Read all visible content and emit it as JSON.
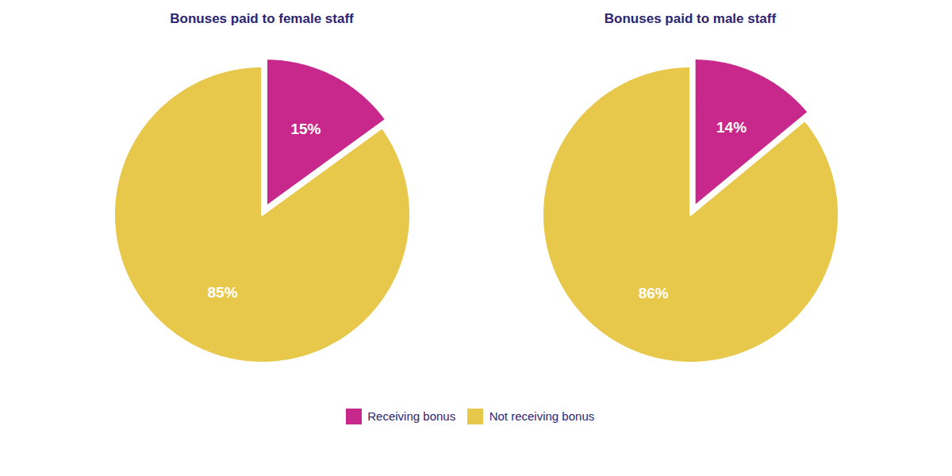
{
  "chart_data": [
    {
      "type": "pie",
      "title": "Bonuses paid to female staff",
      "categories": [
        "Receiving bonus",
        "Not receiving bonus"
      ],
      "values": [
        15,
        85
      ],
      "value_labels": [
        "15%",
        "85%"
      ],
      "colors": [
        "#C8288C",
        "#E8C84A"
      ],
      "data_labels": true,
      "legend": "bottom"
    },
    {
      "type": "pie",
      "title": "Bonuses paid to male staff",
      "categories": [
        "Receiving bonus",
        "Not receiving bonus"
      ],
      "values": [
        14,
        86
      ],
      "value_labels": [
        "14%",
        "86%"
      ],
      "colors": [
        "#C8288C",
        "#E8C84A"
      ],
      "data_labels": true,
      "legend": "bottom"
    }
  ]
}
